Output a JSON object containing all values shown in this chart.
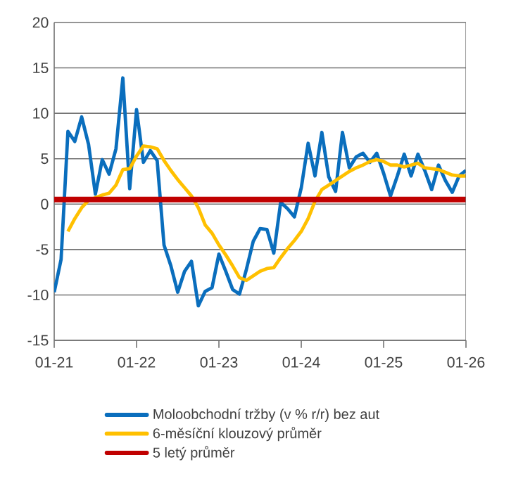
{
  "chart_data": {
    "type": "line",
    "xlim": [
      "2021-01",
      "2026-01"
    ],
    "xticks": [
      {
        "value": "2021-01",
        "label": "01-21"
      },
      {
        "value": "2022-01",
        "label": "01-22"
      },
      {
        "value": "2023-01",
        "label": "01-23"
      },
      {
        "value": "2024-01",
        "label": "01-24"
      },
      {
        "value": "2025-01",
        "label": "01-25"
      },
      {
        "value": "2026-01",
        "label": "01-26"
      }
    ],
    "ylim": [
      -15,
      20
    ],
    "yticks": [
      -15,
      -10,
      -5,
      0,
      5,
      10,
      15,
      20
    ],
    "grid": "y",
    "legend": "bottom",
    "marker": "none",
    "line_style": "solid",
    "series": [
      {
        "name": "Moloobchodní tržby (v % r/r) bez aut",
        "color": "#0a6ebd",
        "x": [
          "2021-01",
          "2021-02",
          "2021-03",
          "2021-04",
          "2021-05",
          "2021-06",
          "2021-07",
          "2021-08",
          "2021-09",
          "2021-10",
          "2021-11",
          "2021-12",
          "2022-01",
          "2022-02",
          "2022-03",
          "2022-04",
          "2022-05",
          "2022-06",
          "2022-07",
          "2022-08",
          "2022-09",
          "2022-10",
          "2022-11",
          "2022-12",
          "2023-01",
          "2023-02",
          "2023-03",
          "2023-04",
          "2023-05",
          "2023-06",
          "2023-07",
          "2023-08",
          "2023-09",
          "2023-10",
          "2023-11",
          "2023-12",
          "2024-01",
          "2024-02",
          "2024-03",
          "2024-04",
          "2024-05",
          "2024-06",
          "2024-07",
          "2024-08",
          "2024-09",
          "2024-10",
          "2024-11",
          "2024-12",
          "2025-01",
          "2025-02",
          "2025-03",
          "2025-04",
          "2025-05",
          "2025-06",
          "2025-07",
          "2025-08",
          "2025-09",
          "2025-10",
          "2025-11",
          "2025-12",
          "2026-01"
        ],
        "values": [
          -9.7,
          -6.1,
          8.0,
          6.9,
          9.6,
          6.6,
          1.1,
          4.9,
          3.3,
          6.1,
          13.9,
          1.7,
          10.4,
          4.6,
          5.9,
          4.8,
          -4.5,
          -6.8,
          -9.7,
          -7.4,
          -6.3,
          -11.2,
          -9.6,
          -9.2,
          -5.5,
          -7.4,
          -9.4,
          -9.9,
          -7.2,
          -4.1,
          -2.7,
          -2.8,
          -5.4,
          0.2,
          -0.5,
          -1.4,
          1.8,
          6.7,
          3.1,
          7.9,
          3.0,
          1.4,
          7.9,
          4.0,
          5.2,
          5.6,
          4.6,
          5.6,
          3.4,
          0.9,
          3.1,
          5.5,
          3.1,
          5.5,
          3.7,
          1.6,
          4.3,
          2.6,
          1.3,
          3.1,
          3.7
        ]
      },
      {
        "name": "6-měsíční klouzový průměr",
        "color": "#ffc000",
        "x": [
          "2021-03",
          "2021-04",
          "2021-05",
          "2021-06",
          "2021-07",
          "2021-08",
          "2021-09",
          "2021-10",
          "2021-11",
          "2021-12",
          "2022-01",
          "2022-02",
          "2022-03",
          "2022-04",
          "2022-05",
          "2022-06",
          "2022-07",
          "2022-08",
          "2022-09",
          "2022-10",
          "2022-11",
          "2022-12",
          "2023-01",
          "2023-02",
          "2023-03",
          "2023-04",
          "2023-05",
          "2023-06",
          "2023-07",
          "2023-08",
          "2023-09",
          "2023-10",
          "2023-11",
          "2023-12",
          "2024-01",
          "2024-02",
          "2024-03",
          "2024-04",
          "2024-05",
          "2024-06",
          "2024-07",
          "2024-08",
          "2024-09",
          "2024-10",
          "2024-11",
          "2024-12",
          "2025-01",
          "2025-02",
          "2025-03",
          "2025-04",
          "2025-05",
          "2025-06",
          "2025-07",
          "2025-08",
          "2025-09",
          "2025-10",
          "2025-11",
          "2025-12",
          "2026-01"
        ],
        "values": [
          -3.0,
          -1.6,
          -0.4,
          0.4,
          0.7,
          1.0,
          1.2,
          2.1,
          3.8,
          3.9,
          5.3,
          6.4,
          6.3,
          6.1,
          4.8,
          3.7,
          2.7,
          1.8,
          0.9,
          -0.4,
          -2.3,
          -3.2,
          -4.5,
          -5.6,
          -6.8,
          -8.1,
          -8.4,
          -7.9,
          -7.4,
          -7.1,
          -7.0,
          -5.9,
          -4.9,
          -4.0,
          -3.0,
          -1.6,
          0.3,
          1.6,
          2.1,
          2.6,
          3.1,
          3.6,
          4.0,
          4.3,
          4.7,
          4.9,
          4.7,
          4.3,
          4.3,
          4.1,
          4.3,
          4.5,
          4.0,
          3.9,
          3.8,
          3.5,
          3.2,
          3.1,
          3.1
        ]
      },
      {
        "name": "5 letý průměr",
        "color": "#c00000",
        "x": [
          "2021-01",
          "2026-01"
        ],
        "values": [
          0.5,
          0.5
        ]
      }
    ]
  }
}
